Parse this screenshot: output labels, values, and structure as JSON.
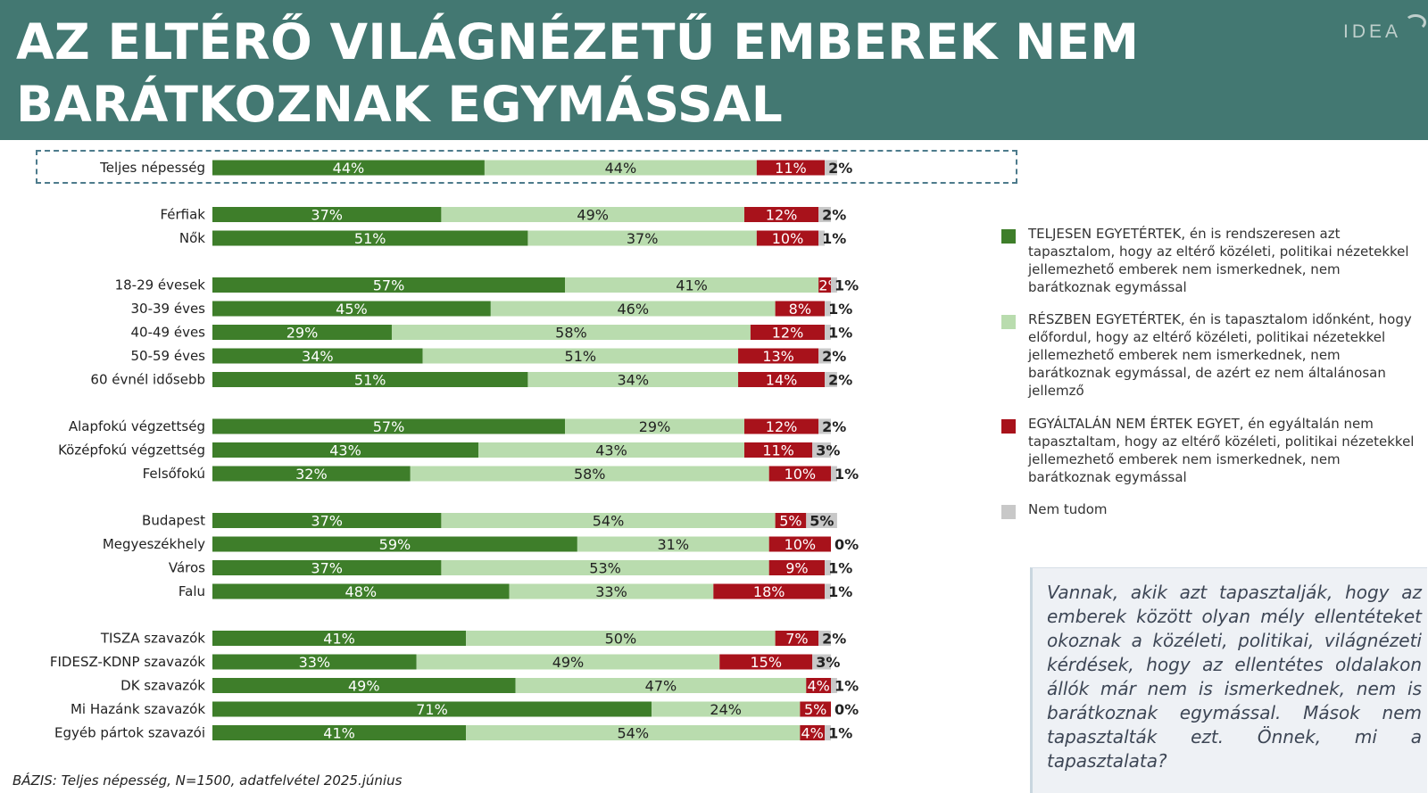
{
  "header": {
    "title": "AZ ELTÉRŐ VILÁGNÉZETŰ EMBEREK NEM BARÁTKOZNAK EGYMÁSSAL",
    "logo": "IDEA"
  },
  "colors": {
    "header_bg": "#437872",
    "fully_agree": "#3e7e2a",
    "partly_agree": "#b9dcae",
    "disagree": "#a8121b",
    "dont_know": "#c8c8c8"
  },
  "chart_data": {
    "type": "bar",
    "orientation": "horizontal",
    "stacked": true,
    "title": "AZ ELTÉRŐ VILÁGNÉZETŰ EMBEREK NEM BARÁTKOZNAK EGYMÁSSAL",
    "xlim": [
      0,
      100
    ],
    "unit": "%",
    "series_names": [
      "TELJESEN EGYETÉRTEK",
      "RÉSZBEN EGYETÉRTEK",
      "EGYÁLTALÁN NEM ÉRTEK EGYET",
      "Nem tudom"
    ],
    "groups": [
      {
        "highlight": true,
        "rows": [
          {
            "label": "Teljes népesség",
            "values": [
              44,
              44,
              11,
              2
            ]
          }
        ]
      },
      {
        "rows": [
          {
            "label": "Férfiak",
            "values": [
              37,
              49,
              12,
              2
            ]
          },
          {
            "label": "Nők",
            "values": [
              51,
              37,
              10,
              1
            ]
          }
        ]
      },
      {
        "rows": [
          {
            "label": "18-29 évesek",
            "values": [
              57,
              41,
              2,
              1
            ]
          },
          {
            "label": "30-39 éves",
            "values": [
              45,
              46,
              8,
              1
            ]
          },
          {
            "label": "40-49 éves",
            "values": [
              29,
              58,
              12,
              1
            ]
          },
          {
            "label": "50-59 éves",
            "values": [
              34,
              51,
              13,
              2
            ]
          },
          {
            "label": "60 évnél idősebb",
            "values": [
              51,
              34,
              14,
              2
            ]
          }
        ]
      },
      {
        "rows": [
          {
            "label": "Alapfokú végzettség",
            "values": [
              57,
              29,
              12,
              2
            ]
          },
          {
            "label": "Középfokú végzettség",
            "values": [
              43,
              43,
              11,
              3
            ]
          },
          {
            "label": "Felsőfokú",
            "values": [
              32,
              58,
              10,
              1
            ]
          }
        ]
      },
      {
        "rows": [
          {
            "label": "Budapest",
            "values": [
              37,
              54,
              5,
              5
            ]
          },
          {
            "label": "Megyeszékhely",
            "values": [
              59,
              31,
              10,
              0
            ]
          },
          {
            "label": "Város",
            "values": [
              37,
              53,
              9,
              1
            ]
          },
          {
            "label": "Falu",
            "values": [
              48,
              33,
              18,
              1
            ]
          }
        ]
      },
      {
        "rows": [
          {
            "label": "TISZA szavazók",
            "values": [
              41,
              50,
              7,
              2
            ]
          },
          {
            "label": "FIDESZ-KDNP szavazók",
            "values": [
              33,
              49,
              15,
              3
            ]
          },
          {
            "label": "DK szavazók",
            "values": [
              49,
              47,
              4,
              1
            ]
          },
          {
            "label": "Mi Hazánk szavazók",
            "values": [
              71,
              24,
              5,
              0
            ]
          },
          {
            "label": "Egyéb pártok szavazói",
            "values": [
              41,
              54,
              4,
              1
            ]
          }
        ]
      }
    ]
  },
  "legend": [
    {
      "key": "fully_agree",
      "strong": "TELJESEN EGYETÉRTEK,",
      "text": " én is rendszeresen azt tapasztalom, hogy az eltérő közéleti, politikai nézetekkel jellemezhető emberek nem ismerkednek, nem barátkoznak egymással"
    },
    {
      "key": "partly_agree",
      "strong": "RÉSZBEN EGYETÉRTEK,",
      "text": " én is tapasztalom időnként, hogy előfordul, hogy az eltérő közéleti, politikai nézetekkel jellemezhető emberek nem ismerkednek, nem barátkoznak egymással, de azért ez nem általánosan jellemző"
    },
    {
      "key": "disagree",
      "strong": "EGYÁLTALÁN NEM ÉRTEK EGYET,",
      "text": " én egyáltalán nem tapasztaltam, hogy az eltérő közéleti, politikai nézetekkel jellemezhető emberek nem ismerkednek, nem barátkoznak egymással"
    },
    {
      "key": "dont_know",
      "strong": "",
      "text": "Nem tudom"
    }
  ],
  "callout": {
    "text": "Vannak, akik azt tapasztalják, hogy az emberek között olyan mély ellentéteket okoznak a közéleti, politikai, világnézeti kérdések, hogy az ellentétes oldalakon állók már nem is ismerkednek, nem is barátkoznak egymással. Mások nem tapasztalták ezt. Önnek, mi a tapasztalata?"
  },
  "footnote": {
    "base": "BÁZIS: Teljes népesség, N=1500, adatfelvétel 2025.június"
  }
}
